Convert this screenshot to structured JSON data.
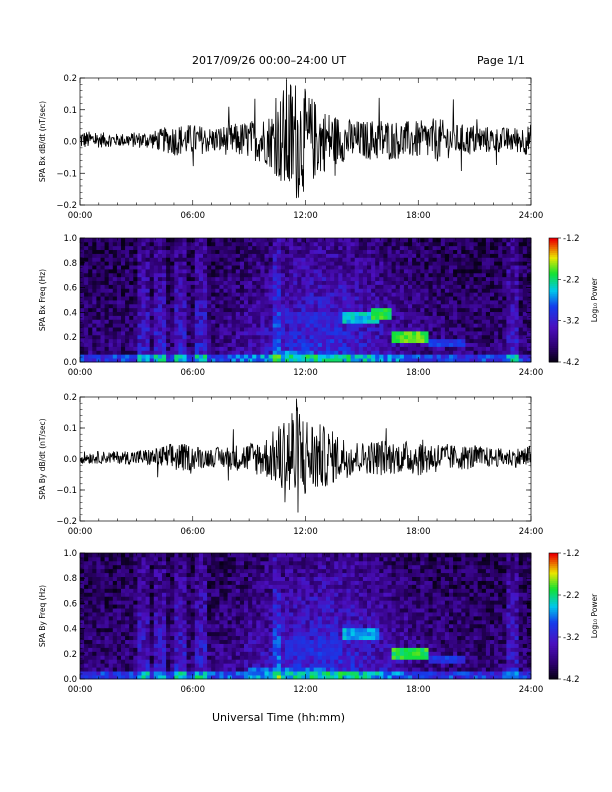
{
  "header": {
    "title": "2017/09/26  00:00–24:00 UT",
    "page": "Page 1/1"
  },
  "footer": {
    "xlabel": "Universal Time (hh:mm)"
  },
  "chart_data": [
    {
      "type": "line",
      "panel": "bx-waveform",
      "ylabel": "SPA Bx dB/dt (nT/sec)",
      "xlabel": "",
      "xlim": [
        0,
        24
      ],
      "ylim": [
        -0.2,
        0.2
      ],
      "x_ticks": [
        "00:00",
        "06:00",
        "12:00",
        "18:00",
        "24:00"
      ],
      "y_ticks": [
        "−0.2",
        "−0.1",
        "0.0",
        "0.1",
        "0.2"
      ],
      "y_tick_values": [
        -0.2,
        -0.1,
        0.0,
        0.1,
        0.2
      ],
      "series": [
        {
          "x": [
            0,
            2,
            4,
            5,
            6,
            7,
            8,
            9,
            10,
            10.5,
            11,
            11.5,
            12,
            13,
            14,
            15,
            16,
            17,
            18,
            19,
            20,
            21,
            22,
            23,
            24
          ],
          "amplitude": [
            0.03,
            0.02,
            0.03,
            0.05,
            0.05,
            0.04,
            0.05,
            0.06,
            0.08,
            0.12,
            0.2,
            0.2,
            0.16,
            0.1,
            0.07,
            0.06,
            0.07,
            0.06,
            0.06,
            0.07,
            0.05,
            0.05,
            0.04,
            0.04,
            0.05
          ]
        }
      ]
    },
    {
      "type": "heatmap",
      "panel": "bx-spectrogram",
      "ylabel": "SPA Bx Freq (Hz)",
      "xlim": [
        0,
        24
      ],
      "ylim": [
        0,
        1.0
      ],
      "x_ticks": [
        "00:00",
        "06:00",
        "12:00",
        "18:00",
        "24:00"
      ],
      "y_ticks": [
        "0.0",
        "0.2",
        "0.4",
        "0.6",
        "0.8",
        "1.0"
      ],
      "y_tick_values": [
        0,
        0.2,
        0.4,
        0.6,
        0.8,
        1.0
      ],
      "colorbar": {
        "label": "Log₁₀ Power",
        "range": [
          -4.2,
          -1.2
        ],
        "ticks": [
          "-1.2",
          "-2.2",
          "-3.2",
          "-4.2"
        ],
        "tick_values": [
          -1.2,
          -2.2,
          -3.2,
          -4.2
        ]
      },
      "features": [
        {
          "x": [
            10.5,
            12.5
          ],
          "f": [
            0.0,
            0.1
          ],
          "value": -2.6
        },
        {
          "x": [
            11,
            14
          ],
          "f": [
            0.3,
            0.4
          ],
          "value": -3.1
        },
        {
          "x": [
            14,
            16
          ],
          "f": [
            0.3,
            0.4
          ],
          "value": -2.4
        },
        {
          "x": [
            15.5,
            16.5
          ],
          "f": [
            0.35,
            0.45
          ],
          "value": -2.0
        },
        {
          "x": [
            16.5,
            18.5
          ],
          "f": [
            0.17,
            0.24
          ],
          "value": -1.9
        },
        {
          "x": [
            18.5,
            20.5
          ],
          "f": [
            0.14,
            0.2
          ],
          "value": -2.9
        }
      ]
    },
    {
      "type": "line",
      "panel": "by-waveform",
      "ylabel": "SPA By dB/dt (nT/sec)",
      "xlabel": "",
      "xlim": [
        0,
        24
      ],
      "ylim": [
        -0.2,
        0.2
      ],
      "x_ticks": [
        "00:00",
        "06:00",
        "12:00",
        "18:00",
        "24:00"
      ],
      "y_ticks": [
        "−0.2",
        "−0.1",
        "0.0",
        "0.1",
        "0.2"
      ],
      "y_tick_values": [
        -0.2,
        -0.1,
        0.0,
        0.1,
        0.2
      ],
      "series": [
        {
          "x": [
            0,
            2,
            4,
            5,
            6,
            7,
            8,
            9,
            10,
            10.5,
            11,
            11.5,
            12,
            13,
            14,
            15,
            16,
            17,
            18,
            19,
            20,
            21,
            22,
            23,
            24
          ],
          "amplitude": [
            0.02,
            0.02,
            0.03,
            0.05,
            0.04,
            0.03,
            0.04,
            0.05,
            0.07,
            0.1,
            0.16,
            0.2,
            0.14,
            0.1,
            0.07,
            0.05,
            0.06,
            0.05,
            0.06,
            0.05,
            0.04,
            0.04,
            0.03,
            0.03,
            0.04
          ]
        }
      ]
    },
    {
      "type": "heatmap",
      "panel": "by-spectrogram",
      "ylabel": "SPA By Freq (Hz)",
      "xlim": [
        0,
        24
      ],
      "ylim": [
        0,
        1.0
      ],
      "x_ticks": [
        "00:00",
        "06:00",
        "12:00",
        "18:00",
        "24:00"
      ],
      "y_ticks": [
        "0.0",
        "0.2",
        "0.4",
        "0.6",
        "0.8",
        "1.0"
      ],
      "y_tick_values": [
        0,
        0.2,
        0.4,
        0.6,
        0.8,
        1.0
      ],
      "colorbar": {
        "label": "Log₁₀ Power",
        "range": [
          -4.2,
          -1.2
        ],
        "ticks": [
          "-1.2",
          "-2.2",
          "-3.2",
          "-4.2"
        ],
        "tick_values": [
          -1.2,
          -2.2,
          -3.2,
          -4.2
        ]
      },
      "features": [
        {
          "x": [
            9,
            13
          ],
          "f": [
            0.0,
            0.08
          ],
          "value": -2.7
        },
        {
          "x": [
            11,
            14
          ],
          "f": [
            0.2,
            0.32
          ],
          "value": -3.0
        },
        {
          "x": [
            14,
            16
          ],
          "f": [
            0.3,
            0.4
          ],
          "value": -2.5
        },
        {
          "x": [
            16.5,
            18.5
          ],
          "f": [
            0.17,
            0.24
          ],
          "value": -2.0
        },
        {
          "x": [
            18.5,
            20.5
          ],
          "f": [
            0.13,
            0.19
          ],
          "value": -2.9
        }
      ]
    }
  ]
}
